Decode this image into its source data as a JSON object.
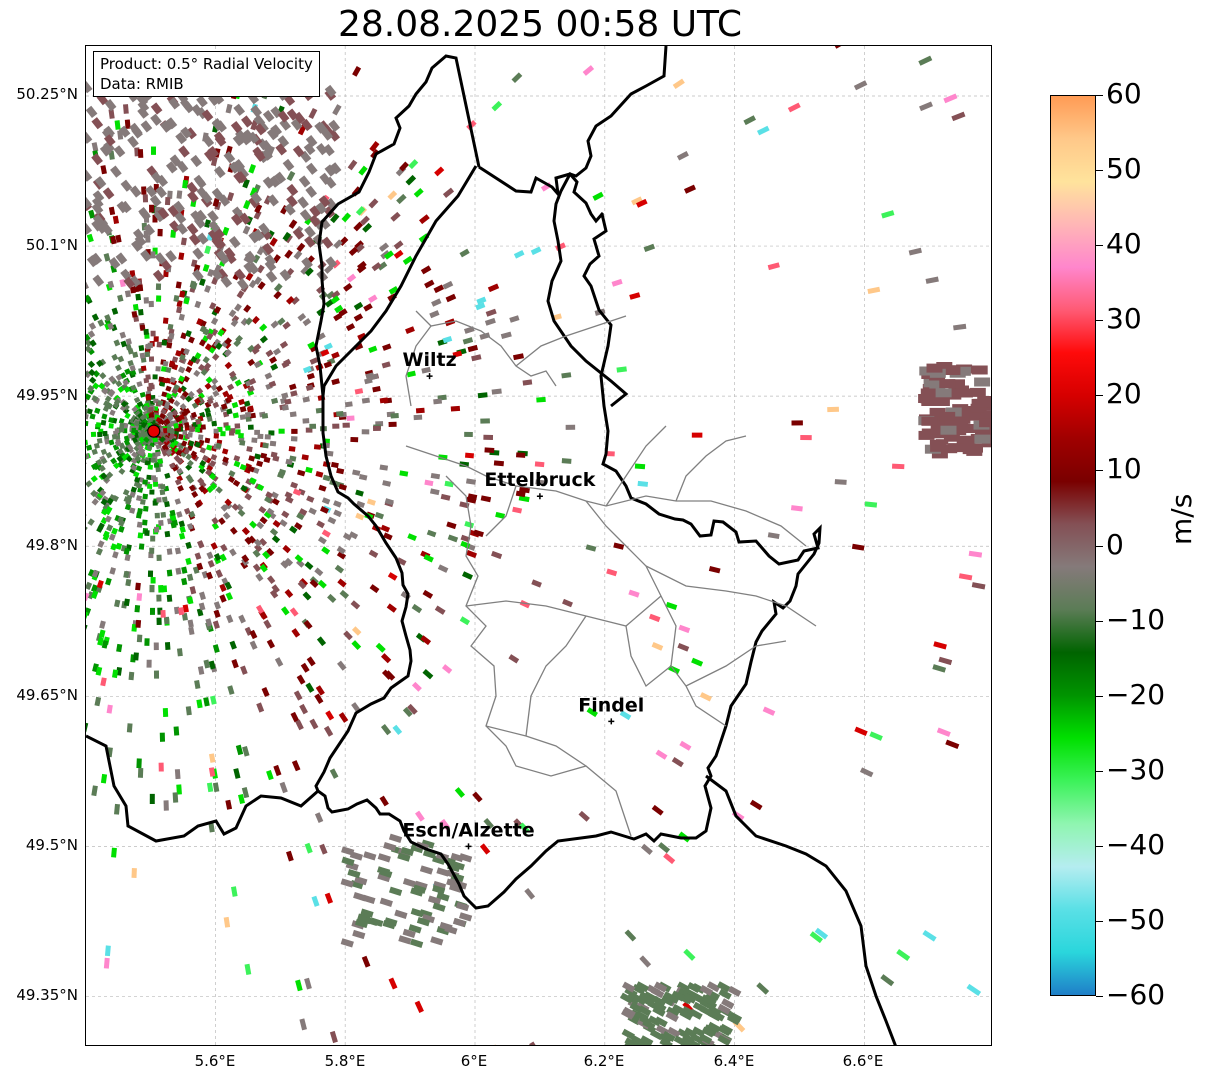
{
  "title": "28.08.2025 00:58 UTC",
  "info": {
    "product": "Product: 0.5° Radial Velocity",
    "source": "Data: RMIB"
  },
  "lat_labels": [
    "50.25°N",
    "50.1°N",
    "49.95°N",
    "49.8°N",
    "49.65°N",
    "49.5°N",
    "49.35°N"
  ],
  "lon_labels": [
    "5.6°E",
    "5.8°E",
    "6°E",
    "6.2°E",
    "6.4°E",
    "6.6°E"
  ],
  "cities": [
    {
      "name": "Wiltz",
      "lon": 5.93,
      "lat": 49.97
    },
    {
      "name": "Ettelbruck",
      "lon": 6.1,
      "lat": 49.85
    },
    {
      "name": "Findel",
      "lon": 6.21,
      "lat": 49.625
    },
    {
      "name": "Esch/Alzette",
      "lon": 5.99,
      "lat": 49.5
    }
  ],
  "radar_site": {
    "lon": 5.505,
    "lat": 49.915
  },
  "colorbar": {
    "unit": "m/s",
    "ticks": [
      "60",
      "50",
      "40",
      "30",
      "20",
      "10",
      "0",
      "−10",
      "−20",
      "−30",
      "−40",
      "−50",
      "−60"
    ],
    "stops": [
      "#ff9b55",
      "#ffc889",
      "#ffe39c",
      "#ffb6b6",
      "#ff86cc",
      "#ff5a74",
      "#ff0a0a",
      "#d60000",
      "#a00000",
      "#7a0000",
      "#845055",
      "#857a7a",
      "#5b7c56",
      "#006400",
      "#009400",
      "#00e000",
      "#3cf25a",
      "#8ff5b0",
      "#b5edf0",
      "#5ae0e6",
      "#2ad6dc",
      "#1f7fc8"
    ]
  }
}
